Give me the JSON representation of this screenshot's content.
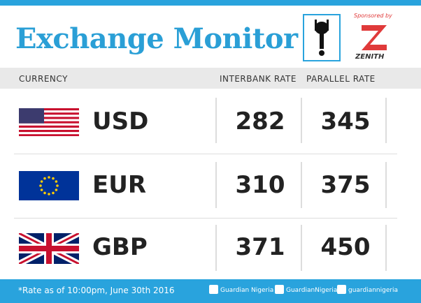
{
  "header": {
    "title": "Exchange Monitor",
    "sponsor_label": "Sponsored by",
    "sponsor_name": "ZENITH"
  },
  "table": {
    "columns": [
      "CURRENCY",
      "INTERBANK RATE",
      "PARALLEL RATE"
    ],
    "rows": [
      [
        "USD",
        282,
        345
      ],
      [
        "EUR",
        310,
        375
      ],
      [
        "GBP",
        371,
        450
      ]
    ]
  },
  "footer": {
    "note": "*Rate as of 10:00pm, June 30th 2016",
    "facebook": "Guardian Nigeria",
    "twitter": "GuardianNigeria",
    "instagram": "guardiannigeria"
  }
}
